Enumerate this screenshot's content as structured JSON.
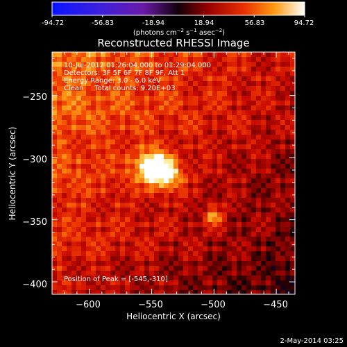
{
  "colorbar": {
    "ticks": [
      "-94.72",
      "-56.83",
      "-18.94",
      "18.94",
      "56.83",
      "94.72"
    ],
    "range": [
      -94.72,
      94.72
    ],
    "unit_main": "(photons cm",
    "unit_sup1": "−2",
    "unit_mid": " s",
    "unit_sup2": "−1",
    "unit_tail": " asec",
    "unit_sup3": "−2",
    "unit_end": ")"
  },
  "chart_data": {
    "type": "heatmap",
    "title": "Reconstructed RHESSI Image",
    "xlabel": "Heliocentric X (arcsec)",
    "ylabel": "Heliocentric Y (arcsec)",
    "xlim": [
      -630,
      -435
    ],
    "ylim": [
      -410,
      -215
    ],
    "x_ticks": [
      -600,
      -550,
      -500,
      -450
    ],
    "y_ticks": [
      -250,
      -300,
      -350,
      -400
    ],
    "x_tick_labels": [
      "−600",
      "−550",
      "−500",
      "−450"
    ],
    "y_tick_labels": [
      "−250",
      "−300",
      "−350",
      "−400"
    ],
    "sources": [
      {
        "x": -545,
        "y": -310,
        "amplitude": 94.72,
        "sigma_x": 12,
        "sigma_y": 9
      },
      {
        "x": -500,
        "y": -347,
        "amplitude": 45,
        "sigma_x": 5,
        "sigma_y": 5
      }
    ],
    "annotations": {
      "time": "10-Jul-2012 01:26:04.000 to 01:29:04.000",
      "detectors": "Detectors: 3F 5F 6F 7F 8F 9F, Att 1",
      "energy": "Energy Range: 3.0 - 6.0 keV",
      "clean": "Clean     Total counts: 9.20E+03",
      "peak": "Position of Peak = [-545,-310]"
    }
  },
  "footer": {
    "date": "2-May-2014 03:25"
  }
}
